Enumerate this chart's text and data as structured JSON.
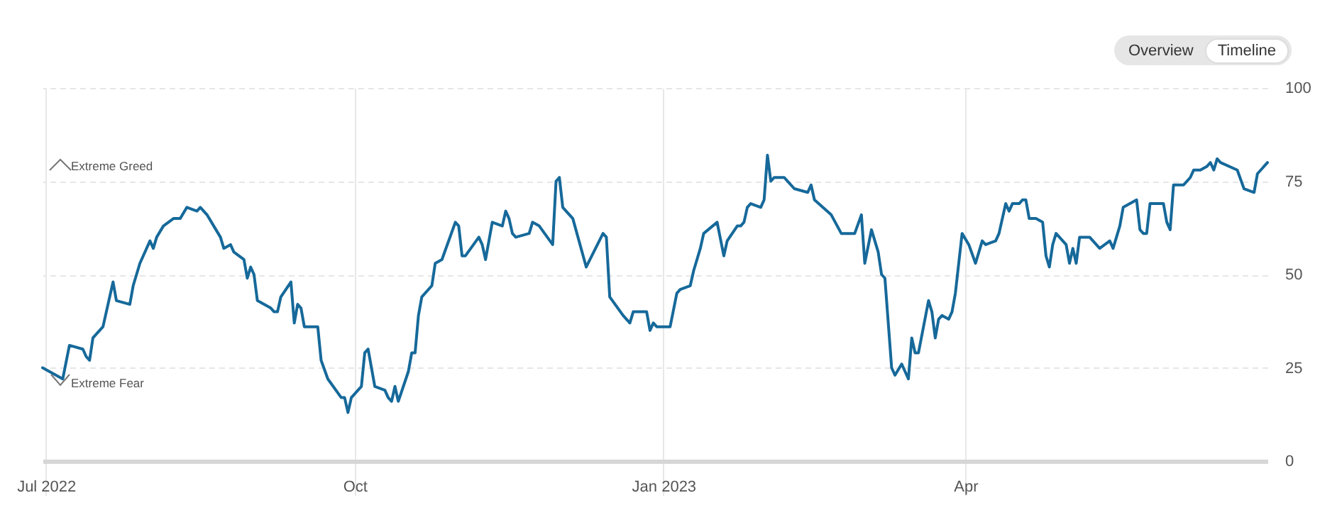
{
  "chart_data": {
    "type": "line",
    "xlim": [
      "2022-06-30",
      "2023-06-30"
    ],
    "xticks": [
      {
        "value": "2022-07-01",
        "label": "Jul 2022"
      },
      {
        "value": "2022-10-01",
        "label": "Oct"
      },
      {
        "value": "2023-01-01",
        "label": "Jan 2023"
      },
      {
        "value": "2023-04-01",
        "label": "Apr"
      }
    ],
    "ylim": [
      0,
      100
    ],
    "yticks": [
      0,
      25,
      50,
      75,
      100
    ],
    "grid": true,
    "annotations": [
      "Extreme Greed",
      "Extreme Fear",
      "Overview",
      "Timeline"
    ],
    "series": [
      {
        "color": "#16699a",
        "x": [
          "2022-06-30",
          "2022-07-06",
          "2022-07-08",
          "2022-07-12",
          "2022-07-13",
          "2022-07-14",
          "2022-07-15",
          "2022-07-18",
          "2022-07-21",
          "2022-07-22",
          "2022-07-26",
          "2022-07-27",
          "2022-07-29",
          "2022-08-01",
          "2022-08-02",
          "2022-08-03",
          "2022-08-05",
          "2022-08-08",
          "2022-08-10",
          "2022-08-12",
          "2022-08-15",
          "2022-08-16",
          "2022-08-18",
          "2022-08-20",
          "2022-08-22",
          "2022-08-23",
          "2022-08-25",
          "2022-08-26",
          "2022-08-29",
          "2022-08-30",
          "2022-08-31",
          "2022-09-01",
          "2022-09-02",
          "2022-09-06",
          "2022-09-07",
          "2022-09-08",
          "2022-09-09",
          "2022-09-12",
          "2022-09-13",
          "2022-09-14",
          "2022-09-15",
          "2022-09-16",
          "2022-09-20",
          "2022-09-21",
          "2022-09-23",
          "2022-09-27",
          "2022-09-28",
          "2022-09-29",
          "2022-09-30",
          "2022-10-03",
          "2022-10-04",
          "2022-10-05",
          "2022-10-07",
          "2022-10-10",
          "2022-10-11",
          "2022-10-12",
          "2022-10-13",
          "2022-10-14",
          "2022-10-17",
          "2022-10-18",
          "2022-10-19",
          "2022-10-20",
          "2022-10-21",
          "2022-10-24",
          "2022-10-25",
          "2022-10-27",
          "2022-10-31",
          "2022-11-01",
          "2022-11-02",
          "2022-11-03",
          "2022-11-07",
          "2022-11-08",
          "2022-11-09",
          "2022-11-11",
          "2022-11-14",
          "2022-11-15",
          "2022-11-16",
          "2022-11-17",
          "2022-11-18",
          "2022-11-22",
          "2022-11-23",
          "2022-11-25",
          "2022-11-29",
          "2022-11-30",
          "2022-12-01",
          "2022-12-02",
          "2022-12-05",
          "2022-12-09",
          "2022-12-14",
          "2022-12-15",
          "2022-12-16",
          "2022-12-20",
          "2022-12-21",
          "2022-12-22",
          "2022-12-23",
          "2022-12-27",
          "2022-12-28",
          "2022-12-29",
          "2022-12-30",
          "2023-01-03",
          "2023-01-05",
          "2023-01-06",
          "2023-01-09",
          "2023-01-10",
          "2023-01-12",
          "2023-01-13",
          "2023-01-17",
          "2023-01-19",
          "2023-01-20",
          "2023-01-23",
          "2023-01-24",
          "2023-01-25",
          "2023-01-26",
          "2023-01-27",
          "2023-01-30",
          "2023-01-31",
          "2023-02-01",
          "2023-02-02",
          "2023-02-03",
          "2023-02-06",
          "2023-02-09",
          "2023-02-13",
          "2023-02-14",
          "2023-02-15",
          "2023-02-20",
          "2023-02-23",
          "2023-02-27",
          "2023-03-01",
          "2023-03-02",
          "2023-03-04",
          "2023-03-06",
          "2023-03-07",
          "2023-03-08",
          "2023-03-10",
          "2023-03-11",
          "2023-03-13",
          "2023-03-15",
          "2023-03-16",
          "2023-03-17",
          "2023-03-18",
          "2023-03-21",
          "2023-03-22",
          "2023-03-23",
          "2023-03-24",
          "2023-03-25",
          "2023-03-27",
          "2023-03-28",
          "2023-03-29",
          "2023-03-31",
          "2023-04-02",
          "2023-04-04",
          "2023-04-06",
          "2023-04-07",
          "2023-04-10",
          "2023-04-11",
          "2023-04-13",
          "2023-04-14",
          "2023-04-15",
          "2023-04-17",
          "2023-04-18",
          "2023-04-19",
          "2023-04-20",
          "2023-04-22",
          "2023-04-24",
          "2023-04-25",
          "2023-04-26",
          "2023-04-27",
          "2023-04-28",
          "2023-05-01",
          "2023-05-02",
          "2023-05-03",
          "2023-05-04",
          "2023-05-05",
          "2023-05-08",
          "2023-05-09",
          "2023-05-10",
          "2023-05-11",
          "2023-05-14",
          "2023-05-15",
          "2023-05-17",
          "2023-05-18",
          "2023-05-22",
          "2023-05-23",
          "2023-05-24",
          "2023-05-25",
          "2023-05-26",
          "2023-05-30",
          "2023-05-31",
          "2023-06-01",
          "2023-06-02",
          "2023-06-05",
          "2023-06-07",
          "2023-06-08",
          "2023-06-10",
          "2023-06-12",
          "2023-06-13",
          "2023-06-14",
          "2023-06-15",
          "2023-06-16",
          "2023-06-21",
          "2023-06-23",
          "2023-06-26",
          "2023-06-27",
          "2023-06-30"
        ],
        "values": [
          25,
          22,
          31,
          30,
          28,
          27,
          33,
          36,
          48,
          43,
          42,
          47,
          53,
          59,
          57,
          60,
          63,
          65,
          65,
          68,
          67,
          68,
          66,
          63,
          60,
          57,
          58,
          56,
          54,
          49,
          52,
          50,
          43,
          41,
          40,
          40,
          44,
          48,
          37,
          42,
          41,
          36,
          36,
          27,
          22,
          17,
          17,
          13,
          17,
          20,
          29,
          30,
          20,
          19,
          17,
          16,
          20,
          16,
          24,
          29,
          29,
          39,
          44,
          47,
          53,
          54,
          64,
          63,
          55,
          55,
          60,
          58,
          54,
          64,
          63,
          67,
          65,
          61,
          60,
          61,
          64,
          63,
          58,
          75,
          76,
          68,
          65,
          52,
          61,
          60,
          44,
          39,
          38,
          37,
          40,
          40,
          35,
          37,
          36,
          36,
          45,
          46,
          47,
          51,
          57,
          61,
          64,
          55,
          59,
          63,
          63,
          64,
          68,
          69,
          68,
          70,
          82,
          75,
          76,
          76,
          73,
          72,
          74,
          70,
          66,
          61,
          61,
          66,
          53,
          62,
          56,
          50,
          49,
          25,
          23,
          26,
          22,
          33,
          29,
          29,
          43,
          40,
          33,
          38,
          39,
          38,
          40,
          45,
          61,
          58,
          53,
          59,
          58,
          59,
          61,
          69,
          67,
          69,
          69,
          70,
          70,
          65,
          65,
          64,
          55,
          52,
          58,
          61,
          58,
          53,
          57,
          53,
          60,
          60,
          59,
          58,
          57,
          59,
          57,
          63,
          68,
          70,
          62,
          61,
          61,
          69,
          69,
          64,
          62,
          74,
          74,
          76,
          78,
          78,
          79,
          80,
          78,
          81,
          80,
          78,
          73,
          72,
          77,
          80
        ]
      }
    ]
  }
}
